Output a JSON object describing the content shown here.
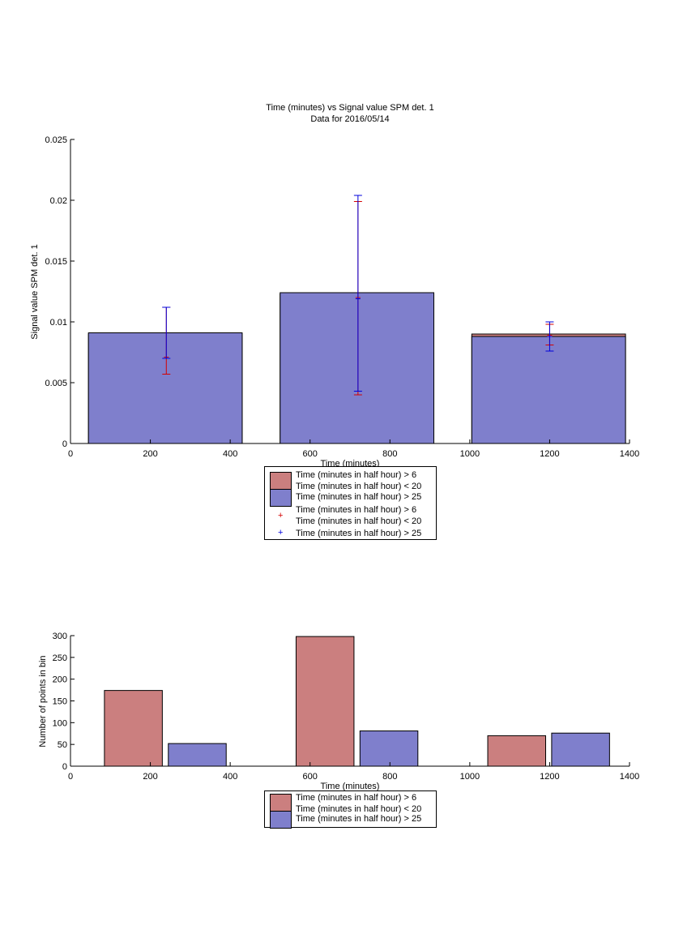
{
  "colors": {
    "series_red": "#cb7f7f",
    "series_blue": "#7f7fcc",
    "error_red": "#d40000",
    "error_blue": "#0000dd"
  },
  "chart_data": [
    {
      "type": "bar",
      "title": "Time (minutes) vs Signal value SPM det. 1",
      "subtitle": "Data for 2016/05/14",
      "xlabel": "Time (minutes)",
      "ylabel": "Signal value SPM det. 1",
      "xlim": [
        0,
        1400
      ],
      "ylim": [
        0,
        0.025
      ],
      "xticks": [
        0,
        200,
        400,
        600,
        800,
        1000,
        1200,
        1400
      ],
      "yticks": [
        0,
        0.005,
        0.01,
        0.015,
        0.02,
        0.025
      ],
      "xtick_labels": [
        "0",
        "200",
        "400",
        "600",
        "800",
        "1000",
        "1200",
        "1400"
      ],
      "ytick_labels": [
        "0",
        "0.005",
        "0.01",
        "0.015",
        "0.02",
        "0.025"
      ],
      "grid": false,
      "legend_position": "below-center",
      "bins": [
        {
          "x_start": 45,
          "x_end": 430,
          "center": 240
        },
        {
          "x_start": 525,
          "x_end": 910,
          "center": 720
        },
        {
          "x_start": 1005,
          "x_end": 1390,
          "center": 1200
        }
      ],
      "series": [
        {
          "name": "Time (minutes in half hour) > 6\nTime (minutes in half hour) < 20",
          "kind": "bar",
          "color": "#cb7f7f",
          "values": [
            0.009,
            0.0123,
            0.009
          ]
        },
        {
          "name": "Time (minutes in half hour) > 25",
          "kind": "bar",
          "color": "#7f7fcc",
          "values": [
            0.0091,
            0.0124,
            0.0088
          ]
        },
        {
          "name": "Time (minutes in half hour) > 6\nTime (minutes in half hour) < 20",
          "kind": "errorbar",
          "color": "#d40000",
          "marker": "+",
          "x": [
            240,
            720,
            1200
          ],
          "values": [
            0.0071,
            0.012,
            0.0089
          ],
          "lower": [
            0.0057,
            0.004,
            0.0081
          ],
          "upper": [
            0.0112,
            0.0199,
            0.0098
          ]
        },
        {
          "name": "Time (minutes in half hour) > 25",
          "kind": "errorbar",
          "color": "#0000dd",
          "marker": "+",
          "x": [
            240,
            720,
            1200
          ],
          "values": [
            0.0112,
            0.0119,
            0.0088
          ],
          "lower": [
            0.007,
            0.0043,
            0.0076
          ],
          "upper": [
            0.0112,
            0.0204,
            0.01
          ]
        }
      ],
      "legend": [
        {
          "kind": "swatch",
          "color": "#cb7f7f",
          "lines": [
            "Time (minutes in half hour) > 6",
            "Time (minutes in half hour) < 20"
          ]
        },
        {
          "kind": "swatch",
          "color": "#7f7fcc",
          "lines": [
            "Time (minutes in half hour) > 25"
          ]
        },
        {
          "kind": "marker",
          "color": "#d40000",
          "marker": "+",
          "lines": [
            "Time (minutes in half hour) > 6",
            "Time (minutes in half hour) < 20"
          ]
        },
        {
          "kind": "marker",
          "color": "#0000dd",
          "marker": "+",
          "lines": [
            "Time (minutes in half hour) > 25"
          ]
        }
      ]
    },
    {
      "type": "bar",
      "title": "",
      "xlabel": "Time (minutes)",
      "ylabel": "Number of points in bin",
      "xlim": [
        0,
        1400
      ],
      "ylim": [
        0,
        300
      ],
      "xticks": [
        0,
        200,
        400,
        600,
        800,
        1000,
        1200,
        1400
      ],
      "yticks": [
        0,
        50,
        100,
        150,
        200,
        250,
        300
      ],
      "xtick_labels": [
        "0",
        "200",
        "400",
        "600",
        "800",
        "1000",
        "1200",
        "1400"
      ],
      "ytick_labels": [
        "0",
        "50",
        "100",
        "150",
        "200",
        "250",
        "300"
      ],
      "grid": false,
      "legend_position": "below-center",
      "series": [
        {
          "name": "Time (minutes in half hour) > 6\nTime (minutes in half hour) < 20",
          "kind": "bar",
          "color": "#cb7f7f",
          "bars": [
            {
              "x_start": 85,
              "x_end": 230,
              "value": 174
            },
            {
              "x_start": 565,
              "x_end": 710,
              "value": 298
            },
            {
              "x_start": 1045,
              "x_end": 1190,
              "value": 70
            }
          ]
        },
        {
          "name": "Time (minutes in half hour) > 25",
          "kind": "bar",
          "color": "#7f7fcc",
          "bars": [
            {
              "x_start": 245,
              "x_end": 390,
              "value": 52
            },
            {
              "x_start": 725,
              "x_end": 870,
              "value": 81
            },
            {
              "x_start": 1205,
              "x_end": 1350,
              "value": 76
            }
          ]
        }
      ],
      "legend": [
        {
          "kind": "swatch",
          "color": "#cb7f7f",
          "lines": [
            "Time (minutes in half hour) > 6",
            "Time (minutes in half hour) < 20"
          ]
        },
        {
          "kind": "swatch",
          "color": "#7f7fcc",
          "lines": [
            "Time (minutes in half hour) > 25"
          ]
        }
      ]
    }
  ]
}
